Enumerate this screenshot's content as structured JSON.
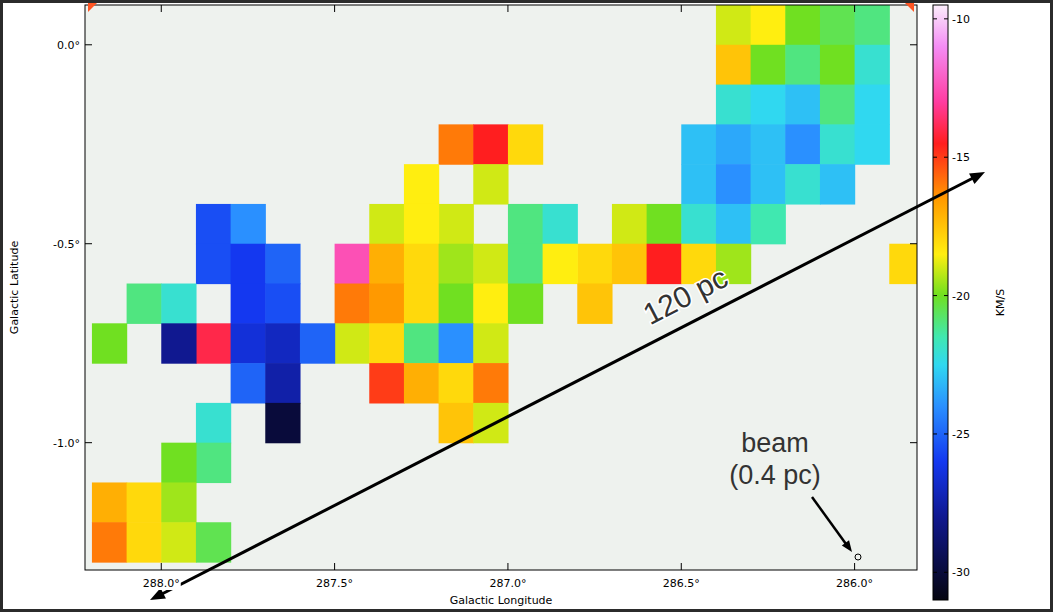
{
  "chart_data": {
    "type": "heatmap",
    "xlabel": "Galactic Longitude",
    "ylabel": "Galactic Latitude",
    "xlim": [
      288.22,
      285.82
    ],
    "ylim": [
      -1.32,
      0.1
    ],
    "xticks": [
      {
        "value": 288,
        "label": "288.0°"
      },
      {
        "value": 287.5,
        "label": "287.5°"
      },
      {
        "value": 287,
        "label": "287.0°"
      },
      {
        "value": 286.5,
        "label": "286.5°"
      },
      {
        "value": 286,
        "label": "286.0°"
      }
    ],
    "yticks": [
      {
        "value": 0,
        "label": "0.0°"
      },
      {
        "value": -0.5,
        "label": "-0.5°"
      },
      {
        "value": -1,
        "label": "-1.0°"
      }
    ],
    "cell_size": 0.1,
    "cells": [
      [
        286.35,
        0.05,
        -19
      ],
      [
        286.25,
        0.05,
        -18.5
      ],
      [
        286.15,
        0.05,
        -20
      ],
      [
        286.05,
        0.05,
        -20.5
      ],
      [
        285.95,
        0.05,
        -21
      ],
      [
        286.35,
        -0.05,
        -17.5
      ],
      [
        286.25,
        -0.05,
        -20
      ],
      [
        286.15,
        -0.05,
        -21
      ],
      [
        286.05,
        -0.05,
        -20
      ],
      [
        285.95,
        -0.05,
        -22
      ],
      [
        286.35,
        -0.15,
        -22
      ],
      [
        286.25,
        -0.15,
        -22.5
      ],
      [
        286.15,
        -0.15,
        -23
      ],
      [
        286.05,
        -0.15,
        -21
      ],
      [
        285.95,
        -0.15,
        -22.5
      ],
      [
        286.45,
        -0.25,
        -23
      ],
      [
        286.35,
        -0.25,
        -23.5
      ],
      [
        286.25,
        -0.25,
        -23
      ],
      [
        286.15,
        -0.25,
        -24
      ],
      [
        286.05,
        -0.25,
        -22
      ],
      [
        285.95,
        -0.25,
        -22.5
      ],
      [
        286.45,
        -0.35,
        -23
      ],
      [
        286.35,
        -0.35,
        -24
      ],
      [
        286.25,
        -0.35,
        -23
      ],
      [
        286.15,
        -0.35,
        -22
      ],
      [
        286.05,
        -0.35,
        -23
      ],
      [
        286.65,
        -0.45,
        -19
      ],
      [
        286.55,
        -0.45,
        -20
      ],
      [
        286.45,
        -0.45,
        -22
      ],
      [
        286.35,
        -0.45,
        -23
      ],
      [
        286.25,
        -0.45,
        -21.5
      ],
      [
        286.75,
        -0.55,
        -18
      ],
      [
        286.65,
        -0.55,
        -17.5
      ],
      [
        286.55,
        -0.55,
        -14.5
      ],
      [
        286.45,
        -0.55,
        -18
      ],
      [
        286.35,
        -0.55,
        -19.5
      ],
      [
        285.85,
        -0.55,
        -18
      ],
      [
        287.15,
        -0.25,
        -16
      ],
      [
        287.05,
        -0.25,
        -14.5
      ],
      [
        286.95,
        -0.25,
        -18
      ],
      [
        287.25,
        -0.35,
        -18.5
      ],
      [
        287.05,
        -0.35,
        -19
      ],
      [
        287.15,
        -0.45,
        -19
      ],
      [
        286.95,
        -0.45,
        -21
      ],
      [
        286.85,
        -0.45,
        -22
      ],
      [
        287.35,
        -0.45,
        -19
      ],
      [
        287.25,
        -0.45,
        -18.5
      ],
      [
        287.45,
        -0.55,
        -12.5
      ],
      [
        287.35,
        -0.55,
        -17
      ],
      [
        287.25,
        -0.55,
        -18
      ],
      [
        287.15,
        -0.55,
        -19.5
      ],
      [
        287.05,
        -0.55,
        -19
      ],
      [
        286.95,
        -0.55,
        -21
      ],
      [
        286.85,
        -0.55,
        -18.5
      ],
      [
        287.45,
        -0.65,
        -16
      ],
      [
        287.35,
        -0.65,
        -16.5
      ],
      [
        287.25,
        -0.65,
        -18
      ],
      [
        287.15,
        -0.65,
        -20
      ],
      [
        287.05,
        -0.65,
        -18.5
      ],
      [
        286.95,
        -0.65,
        -20
      ],
      [
        286.75,
        -0.65,
        -17.5
      ],
      [
        287.45,
        -0.75,
        -19
      ],
      [
        287.35,
        -0.75,
        -18
      ],
      [
        287.25,
        -0.75,
        -21
      ],
      [
        287.15,
        -0.75,
        -24
      ],
      [
        287.05,
        -0.75,
        -19
      ],
      [
        287.35,
        -0.85,
        -15
      ],
      [
        287.25,
        -0.85,
        -17
      ],
      [
        287.15,
        -0.85,
        -18
      ],
      [
        287.05,
        -0.85,
        -16
      ],
      [
        287.15,
        -0.95,
        -17.5
      ],
      [
        287.05,
        -0.95,
        -19
      ],
      [
        287.85,
        -0.45,
        -25.5
      ],
      [
        287.75,
        -0.45,
        -24
      ],
      [
        287.85,
        -0.55,
        -25.5
      ],
      [
        287.75,
        -0.55,
        -26
      ],
      [
        287.65,
        -0.55,
        -25
      ],
      [
        287.75,
        -0.65,
        -26
      ],
      [
        287.65,
        -0.65,
        -25.5
      ],
      [
        287.85,
        -0.75,
        -14
      ],
      [
        287.75,
        -0.75,
        -26.5
      ],
      [
        287.65,
        -0.75,
        -27
      ],
      [
        287.55,
        -0.75,
        -25
      ],
      [
        287.75,
        -0.85,
        -25
      ],
      [
        287.65,
        -0.85,
        -27.5
      ],
      [
        287.65,
        -0.95,
        -30
      ],
      [
        288.05,
        -0.65,
        -21
      ],
      [
        287.95,
        -0.65,
        -22
      ],
      [
        287.95,
        -0.75,
        -28
      ],
      [
        288.15,
        -0.75,
        -20
      ],
      [
        287.85,
        -0.95,
        -22
      ],
      [
        287.85,
        -1.05,
        -21
      ],
      [
        287.95,
        -1.05,
        -20
      ],
      [
        288.15,
        -1.15,
        -17
      ],
      [
        288.05,
        -1.15,
        -18
      ],
      [
        287.95,
        -1.15,
        -19.5
      ],
      [
        288.15,
        -1.25,
        -16
      ],
      [
        288.05,
        -1.25,
        -18
      ],
      [
        287.95,
        -1.25,
        -19
      ],
      [
        287.85,
        -1.25,
        -20.5
      ]
    ],
    "colorbar": {
      "label": "KM/S",
      "range": [
        -9.5,
        -31
      ],
      "ticks": [
        -10,
        -15,
        -20,
        -25,
        -30
      ]
    },
    "annotations": [
      "120 pc",
      "beam",
      "(0.4 pc)"
    ]
  }
}
